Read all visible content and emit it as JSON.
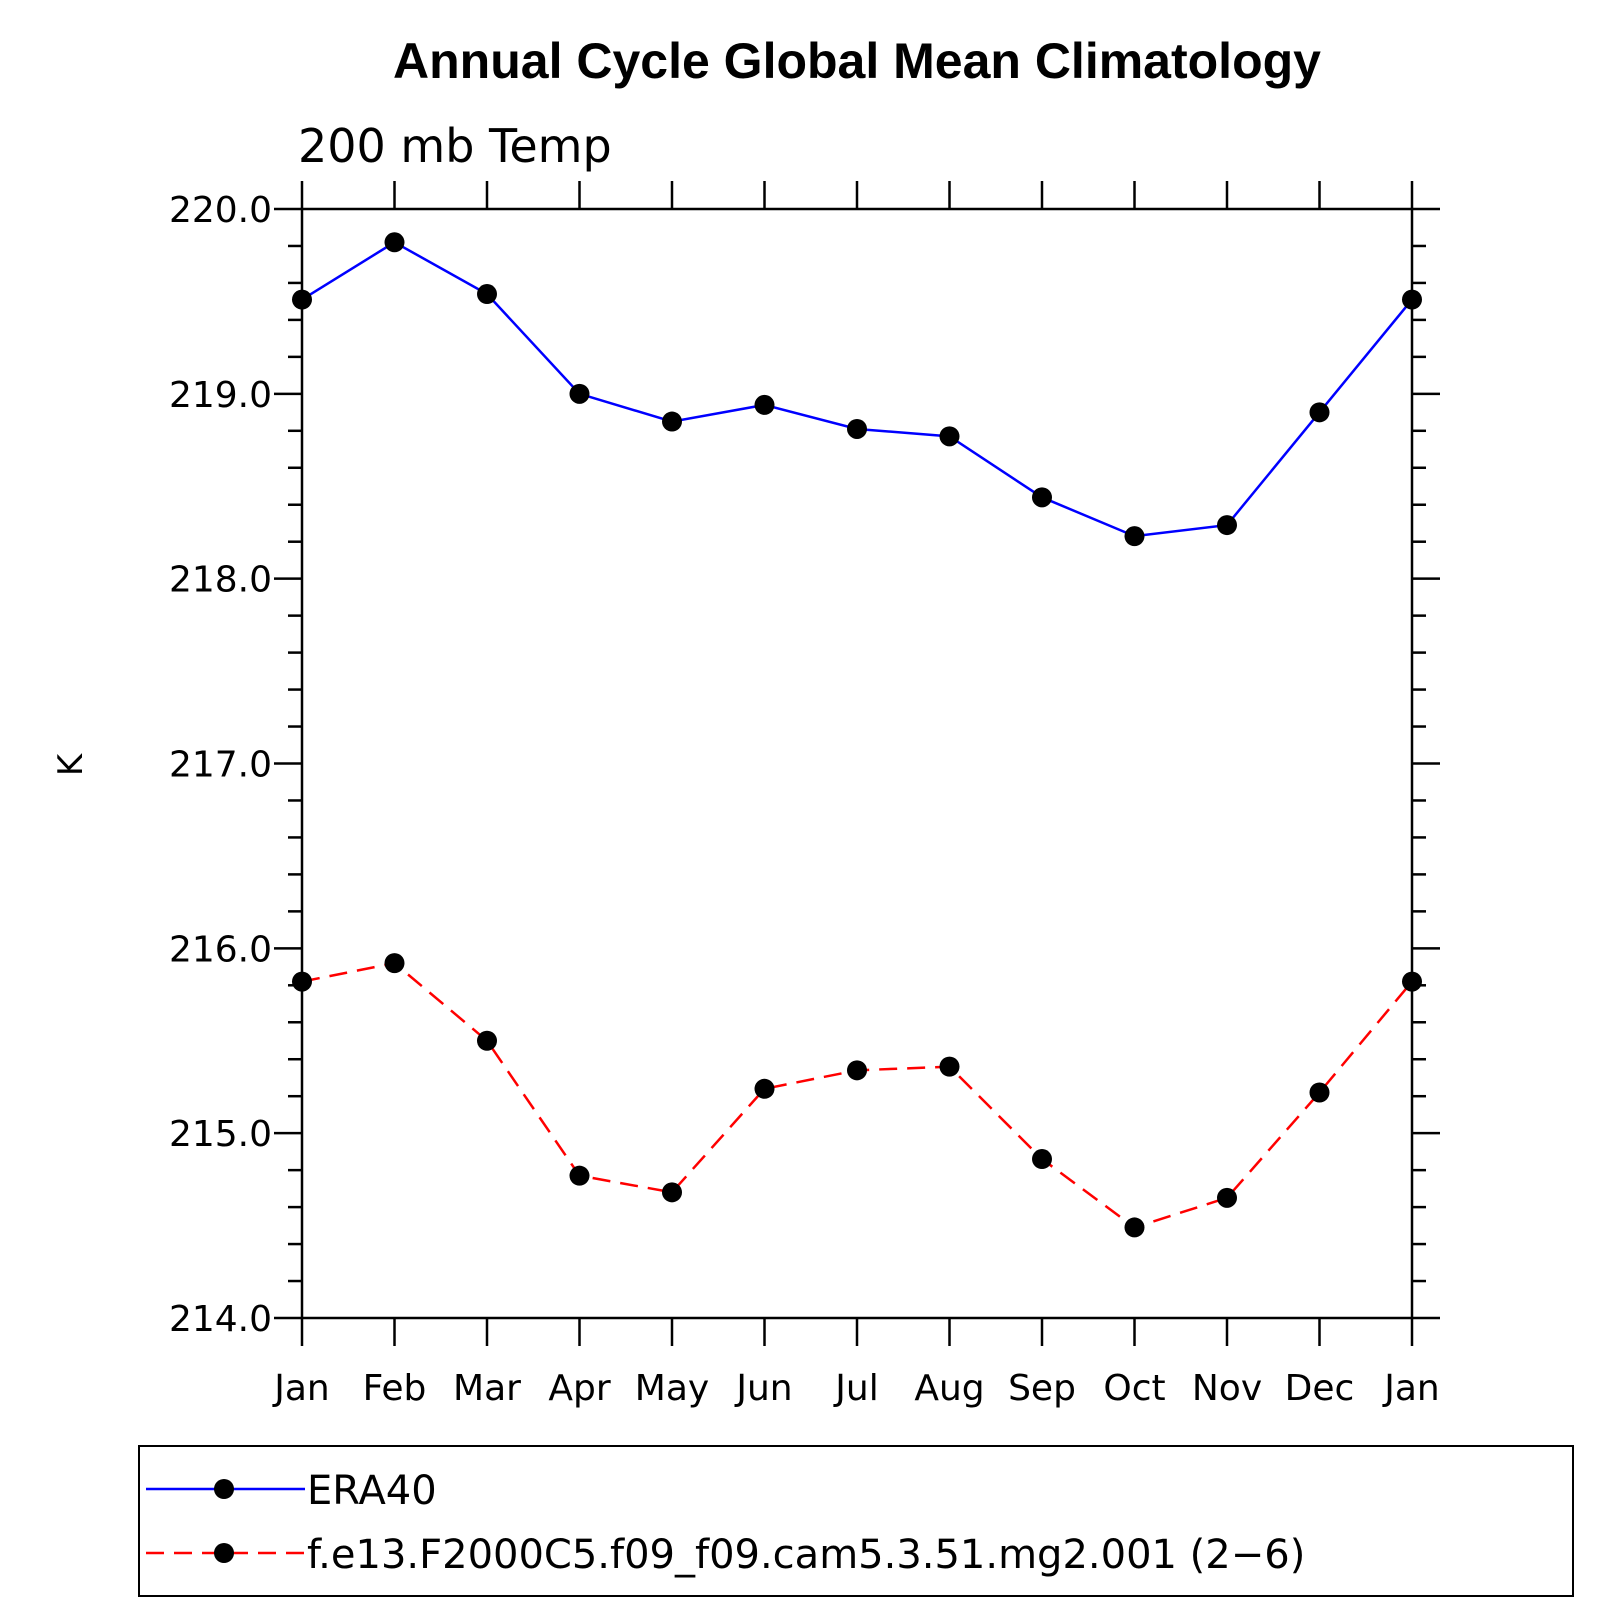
{
  "chart_data": {
    "type": "line",
    "title": "Annual Cycle Global Mean Climatology",
    "subtitle": "200 mb Temp",
    "xlabel": "",
    "ylabel": "K",
    "categories": [
      "Jan",
      "Feb",
      "Mar",
      "Apr",
      "May",
      "Jun",
      "Jul",
      "Aug",
      "Sep",
      "Oct",
      "Nov",
      "Dec",
      "Jan"
    ],
    "ylim": [
      214.0,
      220.0
    ],
    "yticks": [
      "214.0",
      "215.0",
      "216.0",
      "217.0",
      "218.0",
      "219.0",
      "220.0"
    ],
    "grid": false,
    "legend_position": "bottom",
    "series": [
      {
        "name": "ERA40",
        "color": "#0000ff",
        "line_style": "solid",
        "marker": "filled-circle",
        "values": [
          219.51,
          219.82,
          219.54,
          219.0,
          218.85,
          218.94,
          218.81,
          218.77,
          218.44,
          218.23,
          218.29,
          218.9,
          219.51
        ]
      },
      {
        "name": "f.e13.F2000C5.f09_f09.cam5.3.51.mg2.001 (2−6)",
        "color": "#ff0000",
        "line_style": "dashed",
        "marker": "filled-circle",
        "values": [
          215.82,
          215.92,
          215.5,
          214.77,
          214.68,
          215.24,
          215.34,
          215.36,
          214.86,
          214.49,
          214.65,
          215.22,
          215.82
        ]
      }
    ]
  }
}
